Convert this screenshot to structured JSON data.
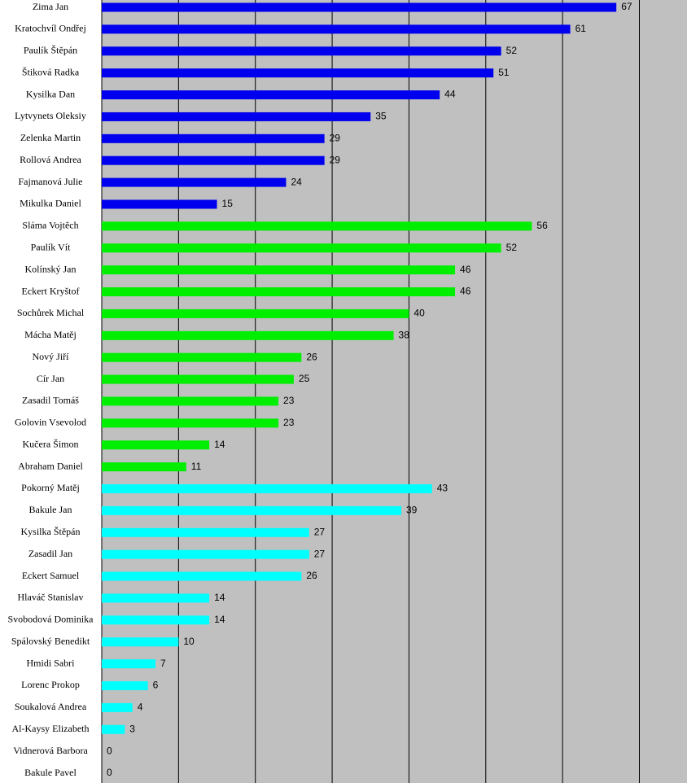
{
  "chart_data": {
    "type": "hbar",
    "categories": [
      "Zima Jan",
      "Kratochvíl Ondřej",
      "Paulík Štěpán",
      "Štiková Radka",
      "Kysilka Dan",
      "Lytvynets Oleksiy",
      "Zelenka Martin",
      "Rollová Andrea",
      "Fajmanová Julie",
      "Mikulka Daniel",
      "Sláma Vojtěch",
      "Paulík Vít",
      "Kolínský Jan",
      "Eckert Kryštof",
      "Sochůrek Michal",
      "Mácha Matěj",
      "Nový Jiří",
      "Cír Jan",
      "Zasadil Tomáš",
      "Golovin Vsevolod",
      "Kučera Šimon",
      "Abraham Daniel",
      "Pokorný Matěj",
      "Bakule Jan",
      "Kysilka Štěpán",
      "Zasadil Jan",
      "Eckert Samuel",
      "Hlaváč Stanislav",
      "Svobodová Dominika",
      "Spálovský Benedikt",
      "Hmidi Sabri",
      "Lorenc Prokop",
      "Soukalová Andrea",
      "Al-Kaysy Elizabeth",
      "Vidnerová Barbora",
      "Bakule Pavel"
    ],
    "values": [
      67,
      61,
      52,
      51,
      44,
      35,
      29,
      29,
      24,
      15,
      56,
      52,
      46,
      46,
      40,
      38,
      26,
      25,
      23,
      23,
      14,
      11,
      43,
      39,
      27,
      27,
      26,
      14,
      14,
      10,
      7,
      6,
      4,
      3,
      0,
      0
    ],
    "colors": [
      "#0000ee",
      "#0000ee",
      "#0000ee",
      "#0000ee",
      "#0000ee",
      "#0000ee",
      "#0000ee",
      "#0000ee",
      "#0000ee",
      "#0000ee",
      "#00ee00",
      "#00ee00",
      "#00ee00",
      "#00ee00",
      "#00ee00",
      "#00ee00",
      "#00ee00",
      "#00ee00",
      "#00ee00",
      "#00ee00",
      "#00ee00",
      "#00ee00",
      "#00ffff",
      "#00ffff",
      "#00ffff",
      "#00ffff",
      "#00ffff",
      "#00ffff",
      "#00ffff",
      "#00ffff",
      "#00ffff",
      "#00ffff",
      "#00ffff",
      "#00ffff",
      "#00ffff",
      "#00ffff"
    ],
    "xlim": [
      0,
      76.2
    ],
    "xticks": [
      0,
      10,
      20,
      30,
      40,
      50,
      60,
      70
    ],
    "grid": true
  }
}
